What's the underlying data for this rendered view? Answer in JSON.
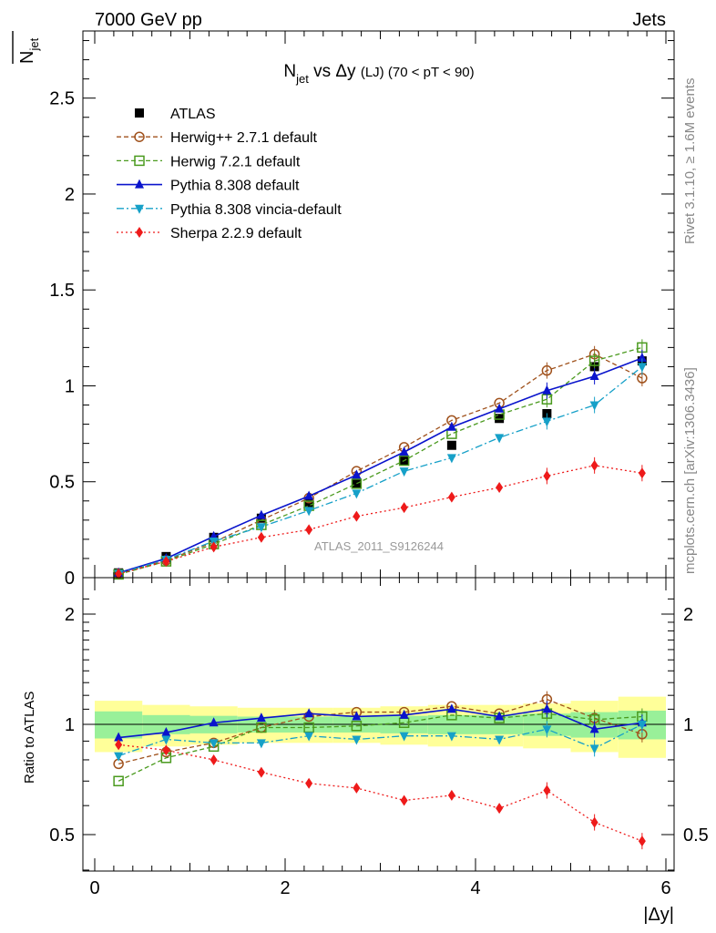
{
  "header": {
    "left": "7000 GeV pp",
    "right": "Jets",
    "side_top": "Rivet 3.1.10, ≥ 1.6M events",
    "side_bottom": "mcplots.cern.ch [arXiv:1306.3436]"
  },
  "chart_data": {
    "type": "scatter",
    "title_main": "N",
    "title_sub": "jet",
    "title_rest": " vs Δy ",
    "title_small": "(LJ)",
    "title_tail": " (70 < pT <  90)",
    "ylabel_main": "N",
    "ylabel_sub": "jet",
    "xlabel": "|Δy|",
    "ratio_ylabel": "Ratio to ATLAS",
    "watermark": "ATLAS_2011_S9126244",
    "xlim": [
      0,
      6
    ],
    "ylim": [
      0,
      2.85
    ],
    "ratio_ylim": [
      0.3,
      2.35
    ],
    "x_ticks": [
      "0",
      "2",
      "4",
      "6"
    ],
    "y_ticks": [
      "0.5",
      "1",
      "1.5",
      "2",
      "2.5"
    ],
    "ratio_ticks": [
      "0.5",
      "1",
      "2"
    ],
    "bin_edges": [
      0,
      0.5,
      1,
      1.5,
      2,
      2.5,
      3,
      3.5,
      4,
      4.5,
      5,
      5.5,
      6
    ],
    "x": [
      0.25,
      0.75,
      1.25,
      1.75,
      2.25,
      2.75,
      3.25,
      3.75,
      4.25,
      4.75,
      5.25,
      5.75
    ],
    "band_inner": [
      0.085,
      0.06,
      0.055,
      0.05,
      0.05,
      0.05,
      0.055,
      0.06,
      0.06,
      0.07,
      0.08,
      0.09
    ],
    "band_outer": [
      0.16,
      0.13,
      0.12,
      0.11,
      0.11,
      0.11,
      0.12,
      0.13,
      0.13,
      0.14,
      0.16,
      0.19
    ],
    "series": [
      {
        "name": "ATLAS",
        "color": "#000000",
        "marker": "square",
        "line": "none",
        "values": [
          0.025,
          0.11,
          0.21,
          0.31,
          0.39,
          0.49,
          0.61,
          0.69,
          0.83,
          0.855,
          1.1,
          1.13
        ],
        "ratio": [
          1,
          1,
          1,
          1,
          1,
          1,
          1,
          1,
          1,
          1,
          1,
          1
        ]
      },
      {
        "name": "Herwig++ 2.7.1 default",
        "color": "#a0521d",
        "marker": "open-circle",
        "line": "dashed",
        "values": [
          0.02,
          0.09,
          0.185,
          0.3,
          0.415,
          0.555,
          0.68,
          0.82,
          0.91,
          1.08,
          1.165,
          1.04
        ],
        "ratio": [
          0.78,
          0.84,
          0.89,
          0.98,
          1.05,
          1.08,
          1.08,
          1.12,
          1.07,
          1.17,
          1.04,
          0.94
        ]
      },
      {
        "name": "Herwig 7.2.1 default",
        "color": "#4a9a1e",
        "marker": "open-square",
        "line": "dashed",
        "values": [
          0.017,
          0.085,
          0.175,
          0.275,
          0.375,
          0.49,
          0.61,
          0.75,
          0.85,
          0.93,
          1.13,
          1.2
        ],
        "ratio": [
          0.7,
          0.81,
          0.87,
          0.98,
          0.98,
          0.99,
          1.01,
          1.06,
          1.04,
          1.07,
          1.03,
          1.05
        ]
      },
      {
        "name": "Pythia 8.308 default",
        "color": "#0a14cc",
        "marker": "triangle-up",
        "line": "solid",
        "values": [
          0.025,
          0.1,
          0.215,
          0.325,
          0.425,
          0.535,
          0.655,
          0.785,
          0.88,
          0.975,
          1.05,
          1.145
        ],
        "ratio": [
          0.92,
          0.95,
          1.01,
          1.04,
          1.07,
          1.05,
          1.06,
          1.1,
          1.05,
          1.1,
          0.97,
          1.01
        ]
      },
      {
        "name": "Pythia 8.308 vincia-default",
        "color": "#16a0c8",
        "marker": "triangle-down",
        "line": "dashdot",
        "values": [
          0.022,
          0.095,
          0.19,
          0.265,
          0.35,
          0.44,
          0.555,
          0.625,
          0.73,
          0.815,
          0.9,
          1.1
        ],
        "ratio": [
          0.82,
          0.91,
          0.89,
          0.89,
          0.93,
          0.91,
          0.93,
          0.93,
          0.91,
          0.97,
          0.86,
          1.0
        ]
      },
      {
        "name": "Sherpa 2.2.9 default",
        "color": "#ee1a1a",
        "marker": "diamond",
        "line": "dotted",
        "values": [
          0.02,
          0.085,
          0.16,
          0.21,
          0.25,
          0.32,
          0.365,
          0.42,
          0.47,
          0.53,
          0.585,
          0.545
        ],
        "ratio": [
          0.88,
          0.85,
          0.8,
          0.74,
          0.69,
          0.67,
          0.62,
          0.64,
          0.59,
          0.66,
          0.54,
          0.48
        ]
      }
    ]
  }
}
